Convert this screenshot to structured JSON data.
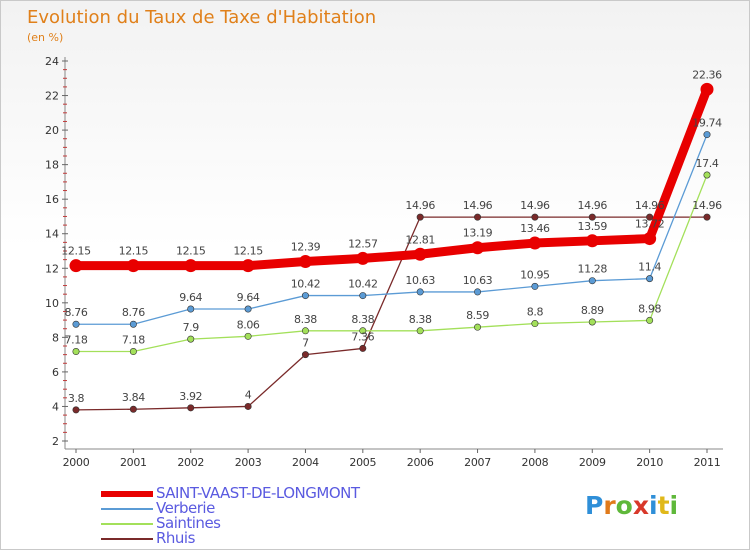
{
  "chart_data": {
    "type": "line",
    "title": "Evolution du Taux de Taxe d'Habitation",
    "subtitle": "(en %)",
    "x": [
      "2000",
      "2001",
      "2002",
      "2003",
      "2004",
      "2005",
      "2006",
      "2007",
      "2008",
      "2009",
      "2010",
      "2011"
    ],
    "ylim": [
      2,
      24
    ],
    "yticks": [
      2,
      4,
      6,
      8,
      10,
      12,
      14,
      16,
      18,
      20,
      22,
      24
    ],
    "grid": false,
    "legend_position": "bottom-left",
    "series": [
      {
        "name": "SAINT-VAAST-DE-LONGMONT",
        "color": "#e80000",
        "values": [
          12.15,
          12.15,
          12.15,
          12.15,
          12.39,
          12.57,
          12.81,
          13.19,
          13.46,
          13.59,
          13.72,
          22.36
        ],
        "labels": [
          "12.15",
          "12.15",
          "12.15",
          "12.15",
          "12.39",
          "12.57",
          "12.81",
          "13.19",
          "13.46",
          "13.59",
          "13.72",
          "22.36"
        ]
      },
      {
        "name": "Verberie",
        "color": "#5b9bd5",
        "values": [
          8.76,
          8.76,
          9.64,
          9.64,
          10.42,
          10.42,
          10.63,
          10.63,
          10.95,
          11.28,
          11.4,
          19.74
        ],
        "labels": [
          "8.76",
          "8.76",
          "9.64",
          "9.64",
          "10.42",
          "10.42",
          "10.63",
          "10.63",
          "10.95",
          "11.28",
          "11.4",
          "19.74"
        ]
      },
      {
        "name": "Saintines",
        "color": "#a3e05a",
        "values": [
          7.18,
          7.18,
          7.9,
          8.06,
          8.38,
          8.38,
          8.38,
          8.59,
          8.8,
          8.89,
          8.98,
          17.4
        ],
        "labels": [
          "7.18",
          "7.18",
          "7.9",
          "8.06",
          "8.38",
          "8.38",
          "8.38",
          "8.59",
          "8.8",
          "8.89",
          "8.98",
          "17.4"
        ]
      },
      {
        "name": "Rhuis",
        "color": "#7a2a2a",
        "values": [
          3.8,
          3.84,
          3.92,
          4,
          7,
          7.36,
          14.96,
          14.96,
          14.96,
          14.96,
          14.96,
          14.96
        ],
        "labels": [
          "3.8",
          "3.84",
          "3.92",
          "4",
          "7",
          "7.36",
          "14.96",
          "14.96",
          "14.96",
          "14.96",
          "14.96",
          "14.96"
        ]
      }
    ]
  },
  "logo": {
    "letters": [
      "P",
      "r",
      "o",
      "x",
      "i",
      "t",
      "i"
    ],
    "colors": [
      "#2f8fd8",
      "#e07a1a",
      "#5fb83a",
      "#d8382a",
      "#2f8fd8",
      "#e0b81a",
      "#5fb83a"
    ]
  }
}
